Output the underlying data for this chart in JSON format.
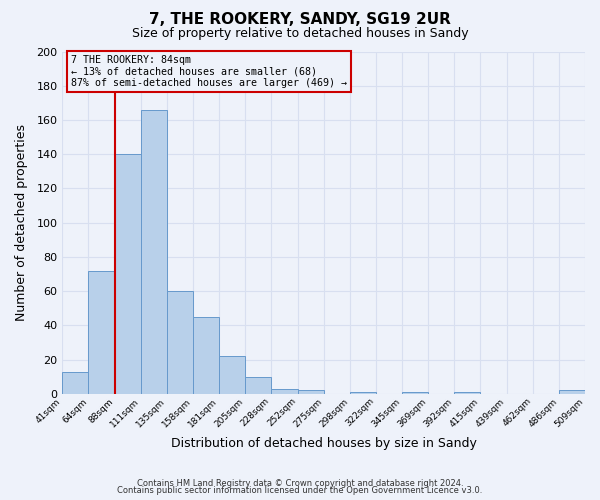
{
  "title": "7, THE ROOKERY, SANDY, SG19 2UR",
  "subtitle": "Size of property relative to detached houses in Sandy",
  "xlabel": "Distribution of detached houses by size in Sandy",
  "ylabel": "Number of detached properties",
  "bin_labels": [
    "41sqm",
    "64sqm",
    "88sqm",
    "111sqm",
    "135sqm",
    "158sqm",
    "181sqm",
    "205sqm",
    "228sqm",
    "252sqm",
    "275sqm",
    "298sqm",
    "322sqm",
    "345sqm",
    "369sqm",
    "392sqm",
    "415sqm",
    "439sqm",
    "462sqm",
    "486sqm",
    "509sqm"
  ],
  "bar_values": [
    13,
    72,
    140,
    166,
    60,
    45,
    22,
    10,
    3,
    2,
    0,
    1,
    0,
    1,
    0,
    1,
    0,
    0,
    0,
    2
  ],
  "bar_color": "#b8d0ea",
  "bar_edge_color": "#6699cc",
  "ylim": [
    0,
    200
  ],
  "yticks": [
    0,
    20,
    40,
    60,
    80,
    100,
    120,
    140,
    160,
    180,
    200
  ],
  "vline_x": 2,
  "vline_color": "#cc0000",
  "annotation_title": "7 THE ROOKERY: 84sqm",
  "annotation_line1": "← 13% of detached houses are smaller (68)",
  "annotation_line2": "87% of semi-detached houses are larger (469) →",
  "annotation_box_edge": "#cc0000",
  "footer1": "Contains HM Land Registry data © Crown copyright and database right 2024.",
  "footer2": "Contains public sector information licensed under the Open Government Licence v3.0.",
  "background_color": "#eef2fa",
  "grid_color": "#d8dff0"
}
